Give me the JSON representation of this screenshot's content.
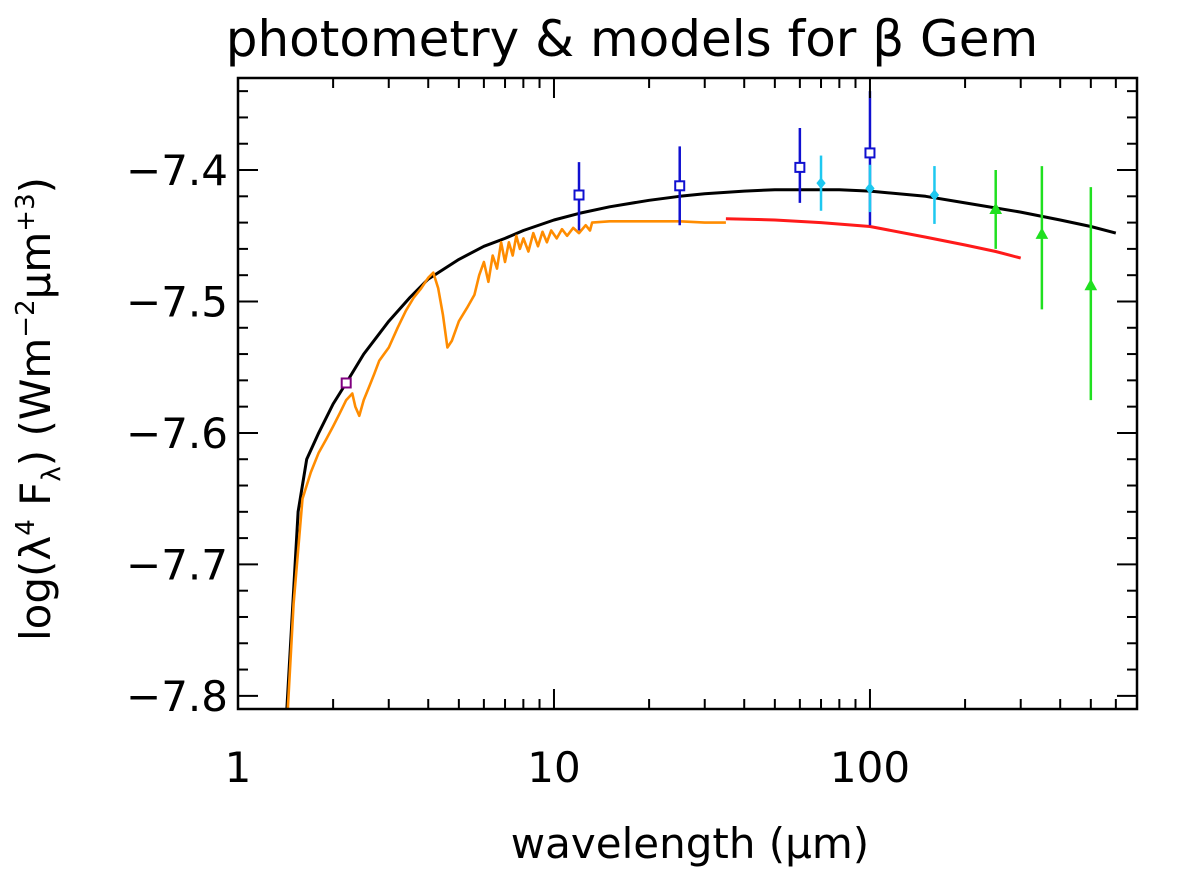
{
  "chart_data": {
    "type": "scatter",
    "title": "photometry & models for β Gem",
    "xlabel": "wavelength (μm)",
    "ylabel_parts": [
      "log(λ",
      "4",
      " F",
      "λ",
      ")  (Wm",
      "−2",
      "μm",
      "+3",
      ")"
    ],
    "x_scale": "log",
    "xlim": [
      1,
      700
    ],
    "ylim": [
      -7.81,
      -7.33
    ],
    "x_ticks": [
      {
        "value": 1,
        "label": "1"
      },
      {
        "value": 10,
        "label": "10"
      },
      {
        "value": 100,
        "label": "100"
      }
    ],
    "y_ticks": [
      {
        "value": -7.4,
        "label": "−7.4"
      },
      {
        "value": -7.5,
        "label": "−7.5"
      },
      {
        "value": -7.6,
        "label": "−7.6"
      },
      {
        "value": -7.7,
        "label": "−7.7"
      },
      {
        "value": -7.8,
        "label": "−7.8"
      }
    ],
    "colors": {
      "model_total": "#000000",
      "spectrum": "#ff8c00",
      "model_star": "#ff1a1a",
      "photometry_k": "#800080",
      "photometry_blue": "#1010d0",
      "photometry_cyan": "#1ec8f0",
      "photometry_green": "#20e020"
    },
    "lines": [
      {
        "key": "model_total",
        "color": "#000000",
        "points": [
          [
            1.42,
            -7.82
          ],
          [
            1.55,
            -7.66
          ],
          [
            1.65,
            -7.62
          ],
          [
            1.8,
            -7.6
          ],
          [
            2.0,
            -7.578
          ],
          [
            2.2,
            -7.562
          ],
          [
            2.5,
            -7.54
          ],
          [
            3.0,
            -7.515
          ],
          [
            3.5,
            -7.497
          ],
          [
            4.0,
            -7.483
          ],
          [
            5.0,
            -7.468
          ],
          [
            6.0,
            -7.458
          ],
          [
            7.0,
            -7.452
          ],
          [
            8.0,
            -7.446
          ],
          [
            10.0,
            -7.438
          ],
          [
            12.0,
            -7.433
          ],
          [
            15.0,
            -7.428
          ],
          [
            20.0,
            -7.423
          ],
          [
            25.0,
            -7.42
          ],
          [
            30.0,
            -7.418
          ],
          [
            40.0,
            -7.416
          ],
          [
            50.0,
            -7.415
          ],
          [
            60.0,
            -7.415
          ],
          [
            80.0,
            -7.415
          ],
          [
            100.0,
            -7.416
          ],
          [
            150.0,
            -7.42
          ],
          [
            200.0,
            -7.425
          ],
          [
            300.0,
            -7.432
          ],
          [
            400.0,
            -7.438
          ],
          [
            500.0,
            -7.443
          ],
          [
            600.0,
            -7.448
          ]
        ]
      },
      {
        "key": "model_star",
        "color": "#ff1a1a",
        "points": [
          [
            35.0,
            -7.437
          ],
          [
            50.0,
            -7.438
          ],
          [
            70.0,
            -7.44
          ],
          [
            100.0,
            -7.443
          ],
          [
            150.0,
            -7.451
          ],
          [
            200.0,
            -7.457
          ],
          [
            250.0,
            -7.462
          ],
          [
            300.0,
            -7.467
          ]
        ]
      },
      {
        "key": "spectrum",
        "color": "#ff8c00",
        "points": [
          [
            1.43,
            -7.82
          ],
          [
            1.5,
            -7.73
          ],
          [
            1.6,
            -7.65
          ],
          [
            1.7,
            -7.63
          ],
          [
            1.8,
            -7.615
          ],
          [
            1.9,
            -7.605
          ],
          [
            2.0,
            -7.595
          ],
          [
            2.1,
            -7.585
          ],
          [
            2.2,
            -7.575
          ],
          [
            2.3,
            -7.57
          ],
          [
            2.35,
            -7.58
          ],
          [
            2.42,
            -7.587
          ],
          [
            2.5,
            -7.575
          ],
          [
            2.6,
            -7.565
          ],
          [
            2.7,
            -7.555
          ],
          [
            2.8,
            -7.545
          ],
          [
            3.0,
            -7.535
          ],
          [
            3.2,
            -7.52
          ],
          [
            3.4,
            -7.507
          ],
          [
            3.6,
            -7.497
          ],
          [
            3.8,
            -7.49
          ],
          [
            4.0,
            -7.482
          ],
          [
            4.15,
            -7.478
          ],
          [
            4.3,
            -7.49
          ],
          [
            4.45,
            -7.51
          ],
          [
            4.6,
            -7.535
          ],
          [
            4.75,
            -7.53
          ],
          [
            5.0,
            -7.515
          ],
          [
            5.3,
            -7.505
          ],
          [
            5.6,
            -7.495
          ],
          [
            5.8,
            -7.48
          ],
          [
            6.0,
            -7.47
          ],
          [
            6.2,
            -7.485
          ],
          [
            6.4,
            -7.465
          ],
          [
            6.6,
            -7.475
          ],
          [
            6.8,
            -7.455
          ],
          [
            7.0,
            -7.47
          ],
          [
            7.2,
            -7.455
          ],
          [
            7.4,
            -7.465
          ],
          [
            7.6,
            -7.45
          ],
          [
            7.8,
            -7.46
          ],
          [
            8.0,
            -7.452
          ],
          [
            8.3,
            -7.462
          ],
          [
            8.6,
            -7.448
          ],
          [
            8.9,
            -7.458
          ],
          [
            9.2,
            -7.447
          ],
          [
            9.5,
            -7.455
          ],
          [
            9.8,
            -7.446
          ],
          [
            10.2,
            -7.452
          ],
          [
            10.6,
            -7.445
          ],
          [
            11.0,
            -7.45
          ],
          [
            11.5,
            -7.444
          ],
          [
            12.0,
            -7.448
          ],
          [
            12.6,
            -7.442
          ],
          [
            13.0,
            -7.446
          ],
          [
            13.2,
            -7.44
          ],
          [
            15.0,
            -7.439
          ],
          [
            20.0,
            -7.439
          ],
          [
            25.0,
            -7.439
          ],
          [
            30.0,
            -7.44
          ],
          [
            35.0,
            -7.44
          ]
        ]
      }
    ],
    "photometry": [
      {
        "series": "photometry_k",
        "marker": "square",
        "color": "#800080",
        "x": 2.2,
        "y": -7.562,
        "err_lo": 0,
        "err_hi": 0
      },
      {
        "series": "photometry_blue",
        "marker": "square",
        "color": "#1010d0",
        "x": 12.0,
        "y": -7.419,
        "err_lo": 0.027,
        "err_hi": 0.025
      },
      {
        "series": "photometry_blue",
        "marker": "square",
        "color": "#1010d0",
        "x": 25.0,
        "y": -7.412,
        "err_lo": 0.03,
        "err_hi": 0.03
      },
      {
        "series": "photometry_blue",
        "marker": "square",
        "color": "#1010d0",
        "x": 60.0,
        "y": -7.398,
        "err_lo": 0.027,
        "err_hi": 0.03
      },
      {
        "series": "photometry_blue",
        "marker": "square",
        "color": "#1010d0",
        "x": 100.0,
        "y": -7.387,
        "err_lo": 0.055,
        "err_hi": 0.047
      },
      {
        "series": "photometry_cyan",
        "marker": "diamond",
        "color": "#1ec8f0",
        "x": 70.0,
        "y": -7.41,
        "err_lo": 0.021,
        "err_hi": 0.021
      },
      {
        "series": "photometry_cyan",
        "marker": "diamond",
        "color": "#1ec8f0",
        "x": 100.0,
        "y": -7.414,
        "err_lo": 0.018,
        "err_hi": 0.018
      },
      {
        "series": "photometry_cyan",
        "marker": "diamond",
        "color": "#1ec8f0",
        "x": 160.0,
        "y": -7.419,
        "err_lo": 0.022,
        "err_hi": 0.022
      },
      {
        "series": "photometry_green",
        "marker": "triangle",
        "color": "#20e020",
        "x": 250.0,
        "y": -7.43,
        "err_lo": 0.03,
        "err_hi": 0.03
      },
      {
        "series": "photometry_green",
        "marker": "triangle",
        "color": "#20e020",
        "x": 350.0,
        "y": -7.449,
        "err_lo": 0.057,
        "err_hi": 0.052
      },
      {
        "series": "photometry_green",
        "marker": "triangle",
        "color": "#20e020",
        "x": 500.0,
        "y": -7.488,
        "err_lo": 0.087,
        "err_hi": 0.075
      }
    ]
  }
}
